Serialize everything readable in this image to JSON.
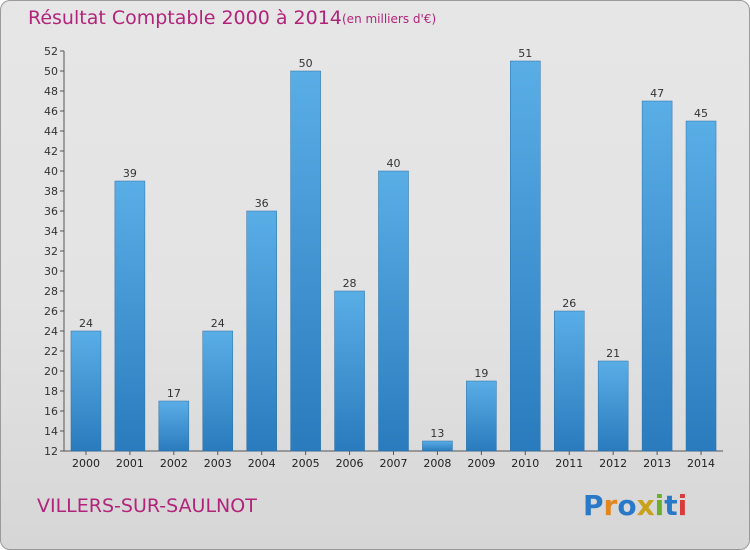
{
  "header": {
    "title": "Résultat Comptable 2000 à 2014",
    "subtitle": "(en milliers d'€)"
  },
  "footer": {
    "commune": "VILLERS-SUR-SAULNOT",
    "logo_text": "Proxiti"
  },
  "colors": {
    "accent": "#b2247a",
    "bar_top": "#5aaee6",
    "bar_bottom": "#2a7bbd"
  },
  "chart_data": {
    "type": "bar",
    "title": "Résultat Comptable 2000 à 2014",
    "ylabel": "(en milliers d'€)",
    "xlabel": "",
    "categories": [
      "2000",
      "2001",
      "2002",
      "2003",
      "2004",
      "2005",
      "2006",
      "2007",
      "2008",
      "2009",
      "2010",
      "2011",
      "2012",
      "2013",
      "2014"
    ],
    "values": [
      24,
      39,
      17,
      24,
      36,
      50,
      28,
      40,
      13,
      19,
      51,
      26,
      21,
      47,
      45
    ],
    "ylim": [
      12,
      52
    ],
    "ytick_step": 2,
    "grid": false,
    "legend": "none"
  }
}
